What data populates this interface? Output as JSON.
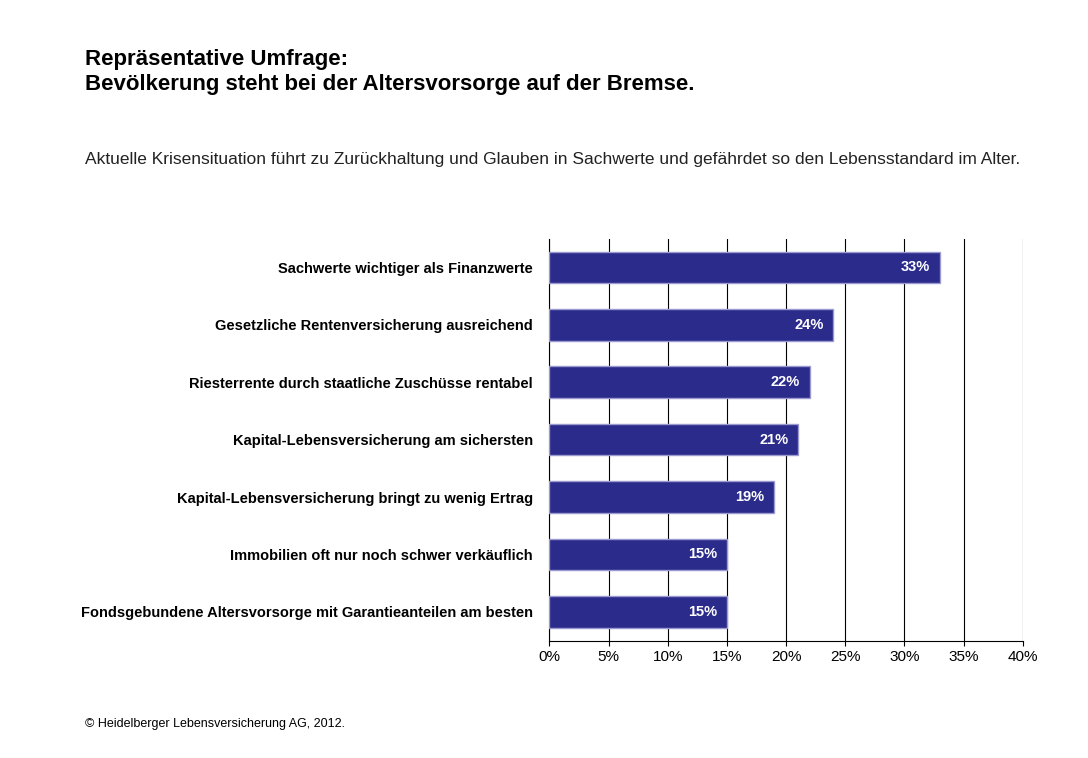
{
  "chart_data": {
    "type": "bar",
    "orientation": "horizontal",
    "title": "Repräsentative Umfrage:\nBevölkerung steht bei der Altersvorsorge auf der Bremse.",
    "subtitle": "Aktuelle Krisensituation führt zu Zurückhaltung und Glauben in Sachwerte und gefährdet so den Lebensstandard im Alter.",
    "categories": [
      "Sachwerte wichtiger als Finanzwerte",
      "Gesetzliche Rentenversicherung ausreichend",
      "Riesterrente durch staatliche Zuschüsse rentabel",
      "Kapital-Lebensversicherung am sichersten",
      "Kapital-Lebensversicherung bringt zu wenig Ertrag",
      "Immobilien oft nur noch schwer verkäuflich",
      "Fondsgebundene Altersvorsorge mit Garantieanteilen am besten"
    ],
    "values": [
      33,
      24,
      22,
      21,
      19,
      15,
      15
    ],
    "value_labels": [
      "33%",
      "24%",
      "22%",
      "21%",
      "19%",
      "15%",
      "15%"
    ],
    "data_labels": true,
    "color": "#2b2b8c",
    "xlim": [
      0,
      40
    ],
    "xticks": [
      {
        "value": 0,
        "label": "0%"
      },
      {
        "value": 5,
        "label": "5%"
      },
      {
        "value": 10,
        "label": "10%"
      },
      {
        "value": 15,
        "label": "15%"
      },
      {
        "value": 20,
        "label": "20%"
      },
      {
        "value": 25,
        "label": "25%"
      },
      {
        "value": 30,
        "label": "30%"
      },
      {
        "value": 35,
        "label": "35%"
      },
      {
        "value": 40,
        "label": "40%"
      }
    ],
    "grid": true,
    "source": "© Heidelberger Lebensversicherung AG, 2012."
  }
}
